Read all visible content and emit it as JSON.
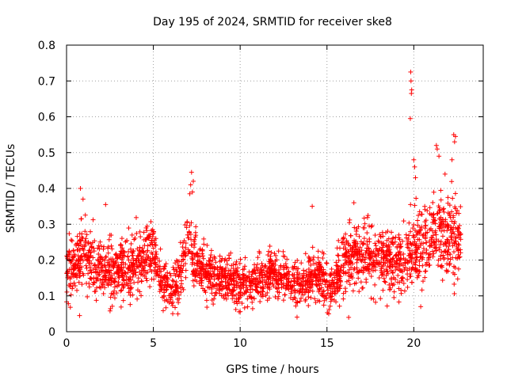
{
  "chart_data": {
    "type": "scatter",
    "title": "Day 195 of 2024, SRMTID for receiver ske8",
    "xlabel": "GPS time / hours",
    "ylabel": "SRMTID / TECUs",
    "xlim": [
      0,
      24
    ],
    "ylim": [
      0,
      0.8
    ],
    "xticks": [
      0,
      5,
      10,
      15,
      20
    ],
    "yticks": [
      0,
      0.1,
      0.2,
      0.3,
      0.4,
      0.5,
      0.6,
      0.7,
      0.8
    ],
    "xtick_labels": [
      "0",
      "5",
      "10",
      "15",
      "20"
    ],
    "ytick_labels": [
      "0",
      "0.1",
      "0.2",
      "0.3",
      "0.4",
      "0.5",
      "0.6",
      "0.7",
      "0.8"
    ],
    "grid": true,
    "marker": "+",
    "color": "#ff0000",
    "series_description": "Dense scatter of SRMTID samples from 0 to ~22.7 h; mostly 0.1–0.25 TECU, with spikes near 7.2 h (~0.45), 19.8 h (~0.72) and 21.5–22.5 h (~0.55).",
    "profile": [
      {
        "x": 0.0,
        "y": 0.18
      },
      {
        "x": 0.5,
        "y": 0.17
      },
      {
        "x": 1.0,
        "y": 0.22
      },
      {
        "x": 1.5,
        "y": 0.2
      },
      {
        "x": 2.0,
        "y": 0.17
      },
      {
        "x": 2.5,
        "y": 0.16
      },
      {
        "x": 3.0,
        "y": 0.17
      },
      {
        "x": 3.5,
        "y": 0.18
      },
      {
        "x": 4.0,
        "y": 0.19
      },
      {
        "x": 4.5,
        "y": 0.21
      },
      {
        "x": 5.0,
        "y": 0.22
      },
      {
        "x": 5.5,
        "y": 0.14
      },
      {
        "x": 6.0,
        "y": 0.12
      },
      {
        "x": 6.5,
        "y": 0.14
      },
      {
        "x": 7.0,
        "y": 0.26
      },
      {
        "x": 7.5,
        "y": 0.2
      },
      {
        "x": 8.0,
        "y": 0.17
      },
      {
        "x": 8.5,
        "y": 0.15
      },
      {
        "x": 9.0,
        "y": 0.14
      },
      {
        "x": 9.5,
        "y": 0.14
      },
      {
        "x": 10.0,
        "y": 0.13
      },
      {
        "x": 10.5,
        "y": 0.13
      },
      {
        "x": 11.0,
        "y": 0.14
      },
      {
        "x": 11.5,
        "y": 0.15
      },
      {
        "x": 12.0,
        "y": 0.16
      },
      {
        "x": 12.5,
        "y": 0.15
      },
      {
        "x": 13.0,
        "y": 0.14
      },
      {
        "x": 13.5,
        "y": 0.13
      },
      {
        "x": 14.0,
        "y": 0.15
      },
      {
        "x": 14.5,
        "y": 0.16
      },
      {
        "x": 15.0,
        "y": 0.13
      },
      {
        "x": 15.5,
        "y": 0.14
      },
      {
        "x": 16.0,
        "y": 0.2
      },
      {
        "x": 16.5,
        "y": 0.21
      },
      {
        "x": 17.0,
        "y": 0.2
      },
      {
        "x": 17.5,
        "y": 0.2
      },
      {
        "x": 18.0,
        "y": 0.21
      },
      {
        "x": 18.5,
        "y": 0.2
      },
      {
        "x": 19.0,
        "y": 0.19
      },
      {
        "x": 19.5,
        "y": 0.2
      },
      {
        "x": 20.0,
        "y": 0.24
      },
      {
        "x": 20.5,
        "y": 0.24
      },
      {
        "x": 21.0,
        "y": 0.27
      },
      {
        "x": 21.5,
        "y": 0.27
      },
      {
        "x": 22.0,
        "y": 0.26
      },
      {
        "x": 22.5,
        "y": 0.26
      },
      {
        "x": 22.75,
        "y": 0.25
      }
    ],
    "spread": [
      {
        "x": 0.0,
        "s": 0.06
      },
      {
        "x": 1.0,
        "s": 0.07
      },
      {
        "x": 5.0,
        "s": 0.06
      },
      {
        "x": 6.0,
        "s": 0.04
      },
      {
        "x": 7.0,
        "s": 0.08
      },
      {
        "x": 8.0,
        "s": 0.05
      },
      {
        "x": 12.0,
        "s": 0.05
      },
      {
        "x": 15.0,
        "s": 0.05
      },
      {
        "x": 16.0,
        "s": 0.07
      },
      {
        "x": 20.0,
        "s": 0.08
      },
      {
        "x": 22.75,
        "s": 0.1
      }
    ],
    "highlights": [
      {
        "x": 19.82,
        "y": 0.725
      },
      {
        "x": 19.84,
        "y": 0.7
      },
      {
        "x": 19.86,
        "y": 0.665
      },
      {
        "x": 19.88,
        "y": 0.675
      },
      {
        "x": 19.8,
        "y": 0.595
      },
      {
        "x": 7.2,
        "y": 0.445
      },
      {
        "x": 7.15,
        "y": 0.41
      },
      {
        "x": 7.3,
        "y": 0.42
      },
      {
        "x": 7.1,
        "y": 0.385
      },
      {
        "x": 7.25,
        "y": 0.39
      },
      {
        "x": 22.3,
        "y": 0.55
      },
      {
        "x": 22.35,
        "y": 0.53
      },
      {
        "x": 22.4,
        "y": 0.545
      },
      {
        "x": 21.3,
        "y": 0.52
      },
      {
        "x": 21.35,
        "y": 0.51
      },
      {
        "x": 21.45,
        "y": 0.49
      },
      {
        "x": 22.2,
        "y": 0.48
      },
      {
        "x": 20.0,
        "y": 0.48
      },
      {
        "x": 20.05,
        "y": 0.46
      },
      {
        "x": 21.8,
        "y": 0.44
      },
      {
        "x": 20.1,
        "y": 0.43
      },
      {
        "x": 14.15,
        "y": 0.35
      },
      {
        "x": 16.55,
        "y": 0.36
      },
      {
        "x": 2.25,
        "y": 0.355
      },
      {
        "x": 0.8,
        "y": 0.4
      },
      {
        "x": 0.95,
        "y": 0.37
      },
      {
        "x": 0.75,
        "y": 0.045
      },
      {
        "x": 20.4,
        "y": 0.07
      },
      {
        "x": 16.25,
        "y": 0.04
      },
      {
        "x": 15.1,
        "y": 0.05
      }
    ],
    "n_points": 2600
  }
}
